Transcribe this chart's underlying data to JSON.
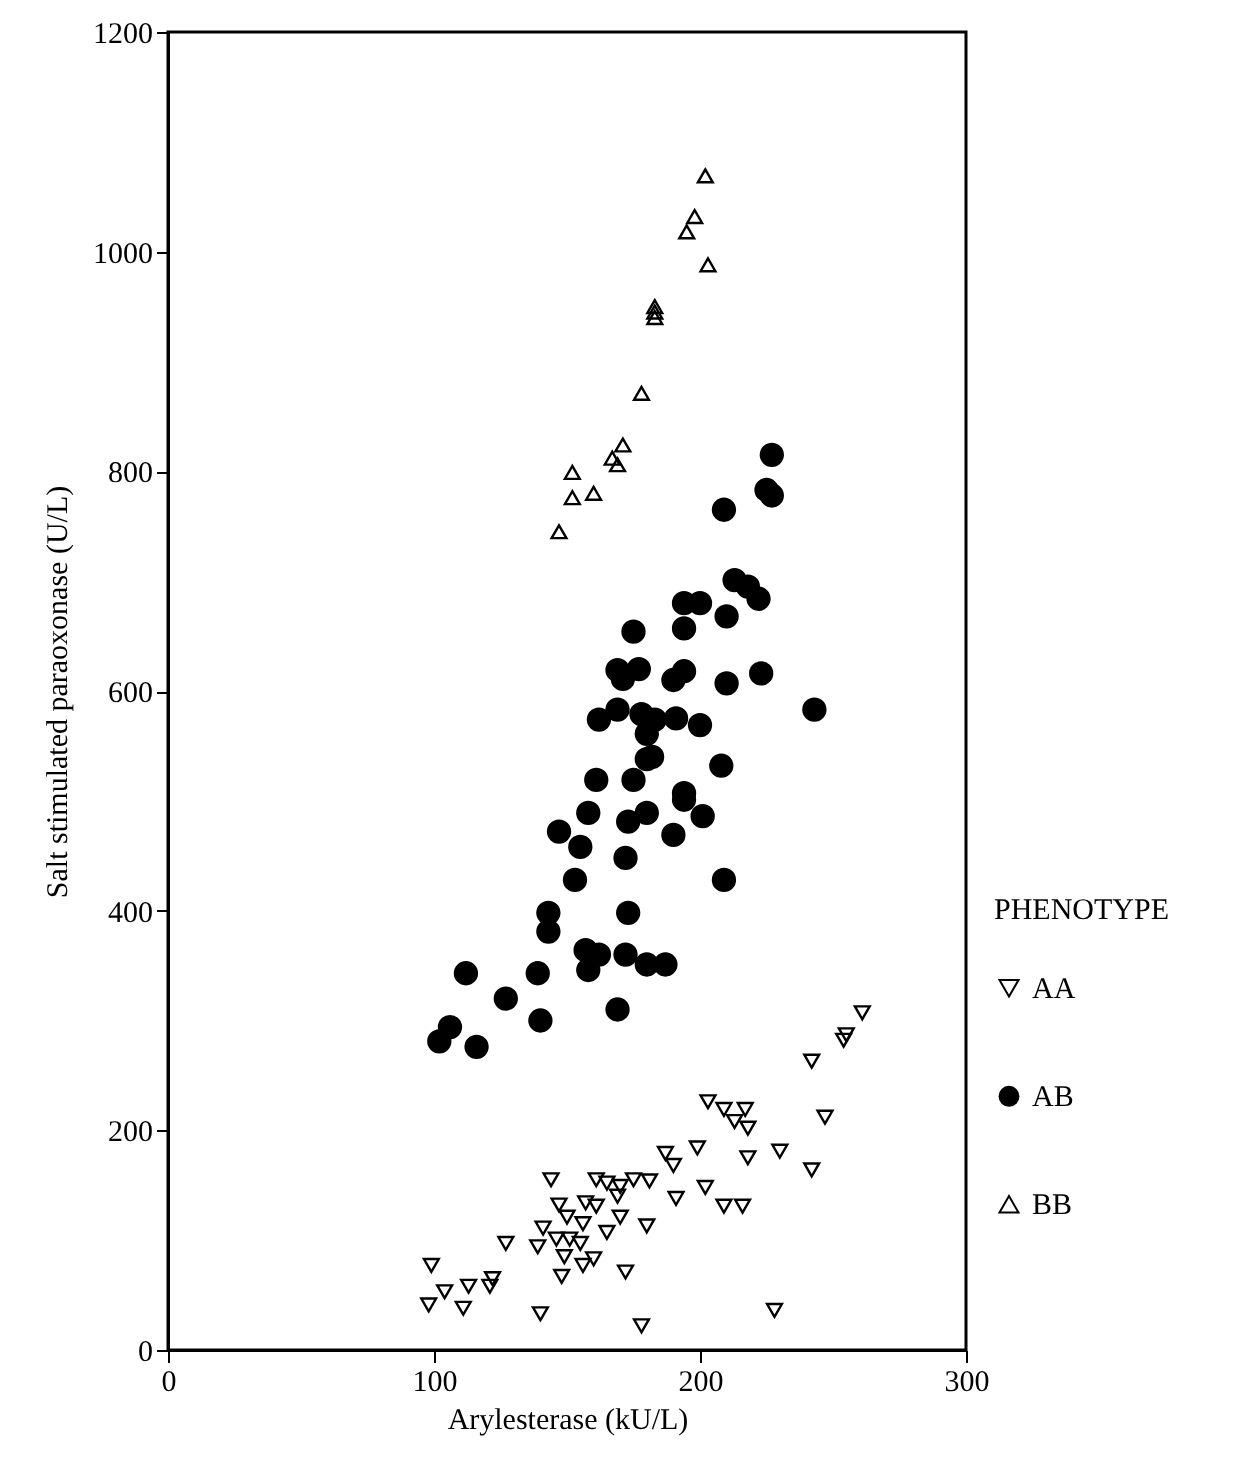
{
  "chart_data": {
    "type": "scatter",
    "xlabel": "Arylesterase (kU/L)",
    "ylabel": "Salt stimulated paraoxonase (U/L)",
    "legend_title": "PHENOTYPE",
    "legend": "right",
    "grid": false,
    "xlim": [
      0,
      300
    ],
    "xticks": [
      0,
      100,
      200,
      300
    ],
    "ylim": [
      0,
      1200
    ],
    "yticks": [
      0,
      200,
      400,
      600,
      800,
      1000,
      1200
    ],
    "series": [
      {
        "name": "AA",
        "color": "#000000",
        "marker": "triangle-down",
        "x": [
          261,
          255,
          254,
          242,
          203,
          209,
          217,
          213,
          218,
          247,
          187,
          190,
          199,
          218,
          230,
          242,
          144,
          161,
          165,
          170,
          175,
          181,
          169,
          191,
          202,
          209,
          216,
          147,
          157,
          161,
          150,
          156,
          170,
          180,
          141,
          165,
          127,
          139,
          146,
          151,
          155,
          160,
          149,
          156,
          99,
          148,
          172,
          113,
          122,
          121,
          104,
          98,
          111,
          140,
          178,
          228
        ],
        "values": [
          307,
          287,
          282,
          263,
          226,
          219,
          219,
          208,
          202,
          212,
          179,
          168,
          184,
          175,
          181,
          164,
          155,
          155,
          152,
          149,
          155,
          154,
          140,
          138,
          148,
          131,
          131,
          132,
          134,
          131,
          121,
          115,
          121,
          113,
          111,
          107,
          97,
          94,
          101,
          101,
          97,
          83,
          85,
          77,
          77,
          67,
          71,
          58,
          65,
          58,
          53,
          41,
          38,
          33,
          22,
          36
        ]
      },
      {
        "name": "AB",
        "color": "#000000",
        "marker": "circle",
        "x": [
          227,
          225,
          227,
          209,
          213,
          218,
          222,
          194,
          200,
          210,
          175,
          194,
          169,
          177,
          171,
          190,
          194,
          210,
          223,
          243,
          162,
          169,
          178,
          183,
          191,
          200,
          180,
          182,
          180,
          208,
          161,
          175,
          194,
          194,
          158,
          180,
          173,
          201,
          147,
          190,
          155,
          172,
          153,
          209,
          143,
          173,
          143,
          157,
          162,
          158,
          172,
          180,
          187,
          112,
          139,
          127,
          169,
          140,
          106,
          102,
          116
        ],
        "values": [
          815,
          783,
          778,
          765,
          701,
          695,
          684,
          680,
          680,
          668,
          654,
          657,
          619,
          620,
          611,
          610,
          618,
          607,
          616,
          583,
          574,
          583,
          579,
          574,
          575,
          569,
          561,
          540,
          538,
          532,
          519,
          519,
          507,
          501,
          489,
          489,
          481,
          486,
          472,
          469,
          458,
          448,
          428,
          428,
          398,
          398,
          381,
          364,
          360,
          346,
          360,
          351,
          351,
          343,
          343,
          320,
          310,
          300,
          294,
          281,
          276
        ]
      },
      {
        "name": "BB",
        "color": "#000000",
        "marker": "triangle",
        "x": [
          202,
          198,
          195,
          203,
          183,
          183,
          183,
          178,
          171,
          167,
          169,
          152,
          152,
          160,
          147
        ],
        "values": [
          1069,
          1032,
          1018,
          988,
          950,
          945,
          940,
          871,
          824,
          812,
          806,
          799,
          776,
          780,
          745
        ]
      }
    ]
  }
}
